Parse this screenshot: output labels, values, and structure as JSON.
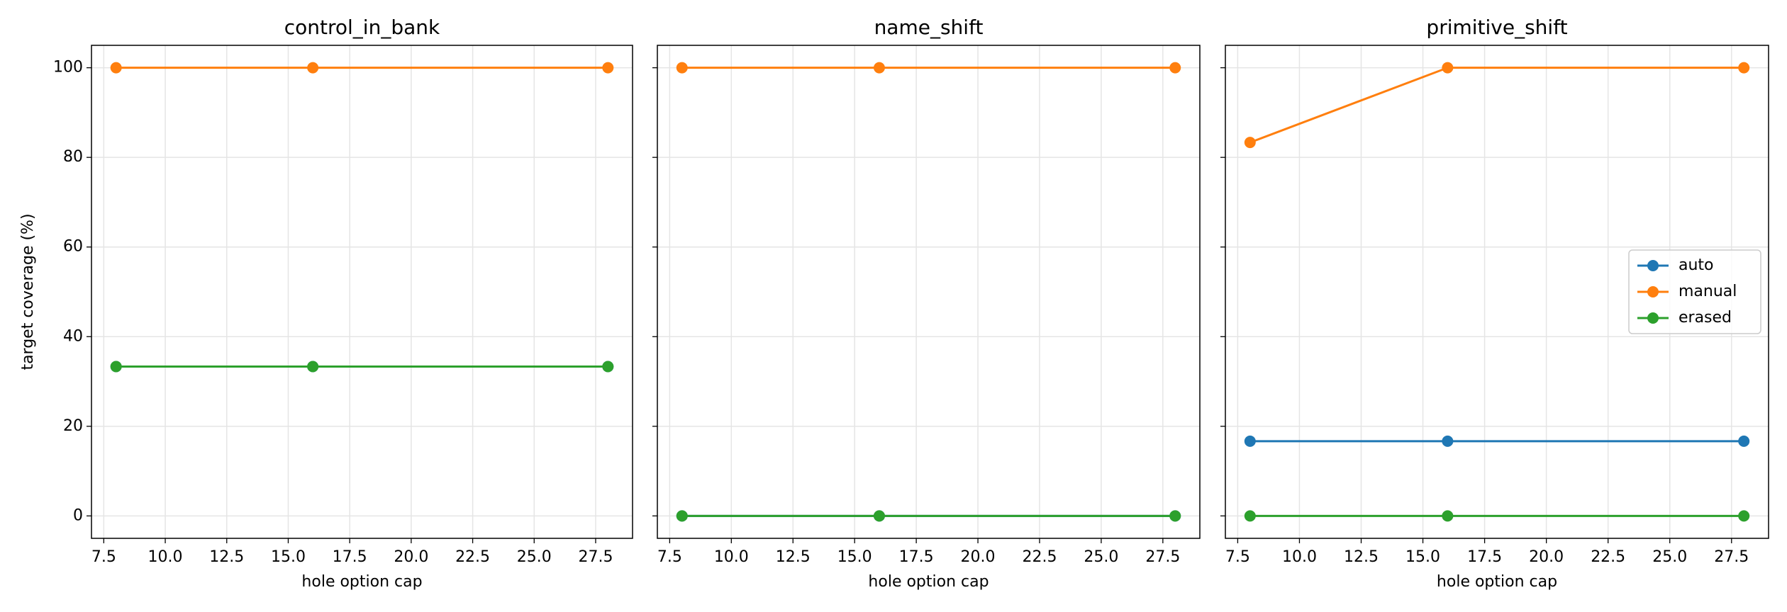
{
  "chart_data": [
    {
      "type": "line",
      "title": "control_in_bank",
      "xlabel": "hole option cap",
      "ylabel": "target coverage (%)",
      "x": [
        8,
        16,
        28
      ],
      "series": [
        {
          "name": "auto",
          "color": "#1f77b4",
          "values": [
            33.33,
            33.33,
            33.33
          ]
        },
        {
          "name": "manual",
          "color": "#ff7f0e",
          "values": [
            100,
            100,
            100
          ]
        },
        {
          "name": "erased",
          "color": "#2ca02c",
          "values": [
            33.33,
            33.33,
            33.33
          ]
        }
      ],
      "xlim": [
        7,
        29
      ],
      "xticks": [
        7.5,
        {
          "value": 10,
          "label": "10.0"
        },
        12.5,
        {
          "value": 15,
          "label": "15.0"
        },
        17.5,
        {
          "value": 20,
          "label": "20.0"
        },
        22.5,
        {
          "value": 25,
          "label": "25.0"
        },
        27.5
      ],
      "ylim": [
        -5,
        105
      ],
      "yticks": [
        0,
        20,
        40,
        60,
        80,
        100
      ],
      "grid": true
    },
    {
      "type": "line",
      "title": "name_shift",
      "xlabel": "hole option cap",
      "x": [
        8,
        16,
        28
      ],
      "series": [
        {
          "name": "auto",
          "color": "#1f77b4",
          "values": [
            0,
            0,
            0
          ]
        },
        {
          "name": "manual",
          "color": "#ff7f0e",
          "values": [
            100,
            100,
            100
          ]
        },
        {
          "name": "erased",
          "color": "#2ca02c",
          "values": [
            0,
            0,
            0
          ]
        }
      ],
      "xlim": [
        7,
        29
      ],
      "xticks": [
        7.5,
        {
          "value": 10,
          "label": "10.0"
        },
        12.5,
        {
          "value": 15,
          "label": "15.0"
        },
        17.5,
        {
          "value": 20,
          "label": "20.0"
        },
        22.5,
        {
          "value": 25,
          "label": "25.0"
        },
        27.5
      ],
      "ylim": [
        -5,
        105
      ],
      "yticks": [
        0,
        20,
        40,
        60,
        80,
        100
      ],
      "grid": true
    },
    {
      "type": "line",
      "title": "primitive_shift",
      "xlabel": "hole option cap",
      "x": [
        8,
        16,
        28
      ],
      "series": [
        {
          "name": "auto",
          "color": "#1f77b4",
          "values": [
            16.67,
            16.67,
            16.67
          ]
        },
        {
          "name": "manual",
          "color": "#ff7f0e",
          "values": [
            83.33,
            100,
            100
          ]
        },
        {
          "name": "erased",
          "color": "#2ca02c",
          "values": [
            0,
            0,
            0
          ]
        }
      ],
      "xlim": [
        7,
        29
      ],
      "xticks": [
        7.5,
        {
          "value": 10,
          "label": "10.0"
        },
        12.5,
        {
          "value": 15,
          "label": "15.0"
        },
        17.5,
        {
          "value": 20,
          "label": "20.0"
        },
        22.5,
        {
          "value": 25,
          "label": "25.0"
        },
        27.5
      ],
      "ylim": [
        -5,
        105
      ],
      "yticks": [
        0,
        20,
        40,
        60,
        80,
        100
      ],
      "grid": true,
      "legend": "center right"
    }
  ]
}
